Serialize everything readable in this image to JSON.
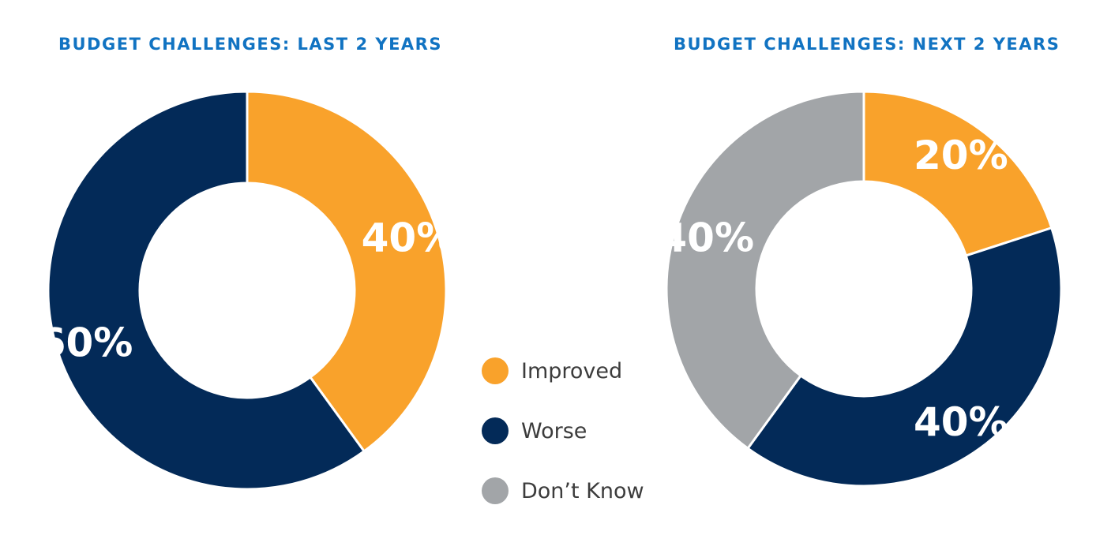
{
  "chart_data": [
    {
      "type": "pie",
      "title": "BUDGET CHALLENGES: LAST 2 YEARS",
      "categories": [
        "Improved",
        "Worse"
      ],
      "values": [
        40,
        60
      ],
      "labels": [
        "40%",
        "60%"
      ],
      "colors": [
        "#f9a22b",
        "#032a58"
      ]
    },
    {
      "type": "pie",
      "title": "BUDGET CHALLENGES: NEXT 2 YEARS",
      "categories": [
        "Improved",
        "Worse",
        "Don’t Know"
      ],
      "values": [
        20,
        40,
        40
      ],
      "labels": [
        "20%",
        "40%",
        "40%"
      ],
      "colors": [
        "#f9a22b",
        "#032a58",
        "#a2a5a8"
      ]
    }
  ],
  "legend": {
    "items": [
      {
        "label": "Improved",
        "color": "#f9a22b"
      },
      {
        "label": "Worse",
        "color": "#032a58"
      },
      {
        "label": "Don’t Know",
        "color": "#a2a5a8"
      }
    ]
  }
}
